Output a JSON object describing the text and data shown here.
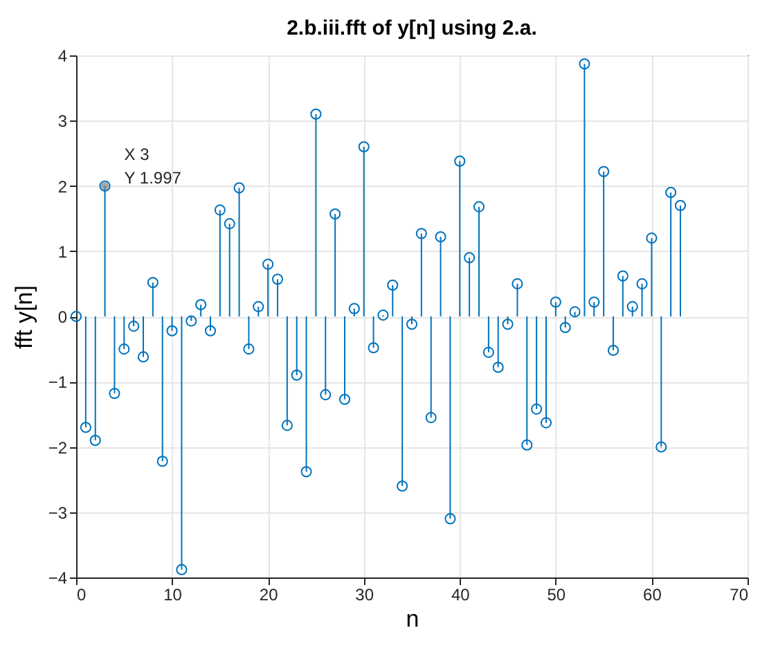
{
  "chart_data": {
    "type": "lollipop",
    "title": "2.b.iii.fft of y[n] using 2.a.",
    "xlabel": "n",
    "ylabel": "fft y[n]",
    "x": [
      0,
      1,
      2,
      3,
      4,
      5,
      6,
      7,
      8,
      9,
      10,
      11,
      12,
      13,
      14,
      15,
      16,
      17,
      18,
      19,
      20,
      21,
      22,
      23,
      24,
      25,
      26,
      27,
      28,
      29,
      30,
      31,
      32,
      33,
      34,
      35,
      36,
      37,
      38,
      39,
      40,
      41,
      42,
      43,
      44,
      45,
      46,
      47,
      48,
      49,
      50,
      51,
      52,
      53,
      54,
      55,
      56,
      57,
      58,
      59,
      60,
      61,
      62,
      63
    ],
    "series": [
      {
        "color": "#0072bd",
        "values": [
          0,
          -1.7,
          -1.9,
          1.997,
          -1.18,
          -0.5,
          -0.15,
          -0.62,
          0.52,
          -2.22,
          -0.22,
          -3.88,
          -0.07,
          0.18,
          -0.22,
          1.63,
          1.42,
          1.97,
          -0.5,
          0.15,
          0.8,
          0.57,
          -1.67,
          -0.9,
          -2.38,
          3.1,
          -1.2,
          1.57,
          -1.27,
          0.12,
          2.6,
          -0.48,
          0.02,
          0.48,
          -2.6,
          -0.12,
          1.27,
          -1.55,
          1.22,
          -3.1,
          2.38,
          0.9,
          1.68,
          -0.55,
          -0.78,
          -0.12,
          0.5,
          -1.97,
          -1.42,
          -1.63,
          0.22,
          -0.17,
          0.07,
          3.87,
          0.22,
          2.22,
          -0.52,
          0.62,
          0.15,
          0.5,
          1.2,
          -2.0,
          1.9,
          1.7
        ]
      }
    ],
    "xlim": [
      0,
      70
    ],
    "xticks": [
      0,
      10,
      20,
      30,
      40,
      50,
      60,
      70
    ],
    "ylim": [
      -4,
      4
    ],
    "yticks": [
      -4,
      -3,
      -2,
      -1,
      0,
      1,
      2,
      3,
      4
    ],
    "grid": true,
    "marker": "circle",
    "annotations": [
      {
        "text": "X 3\nY 1.997",
        "x": 3,
        "y": 1.997
      }
    ]
  }
}
